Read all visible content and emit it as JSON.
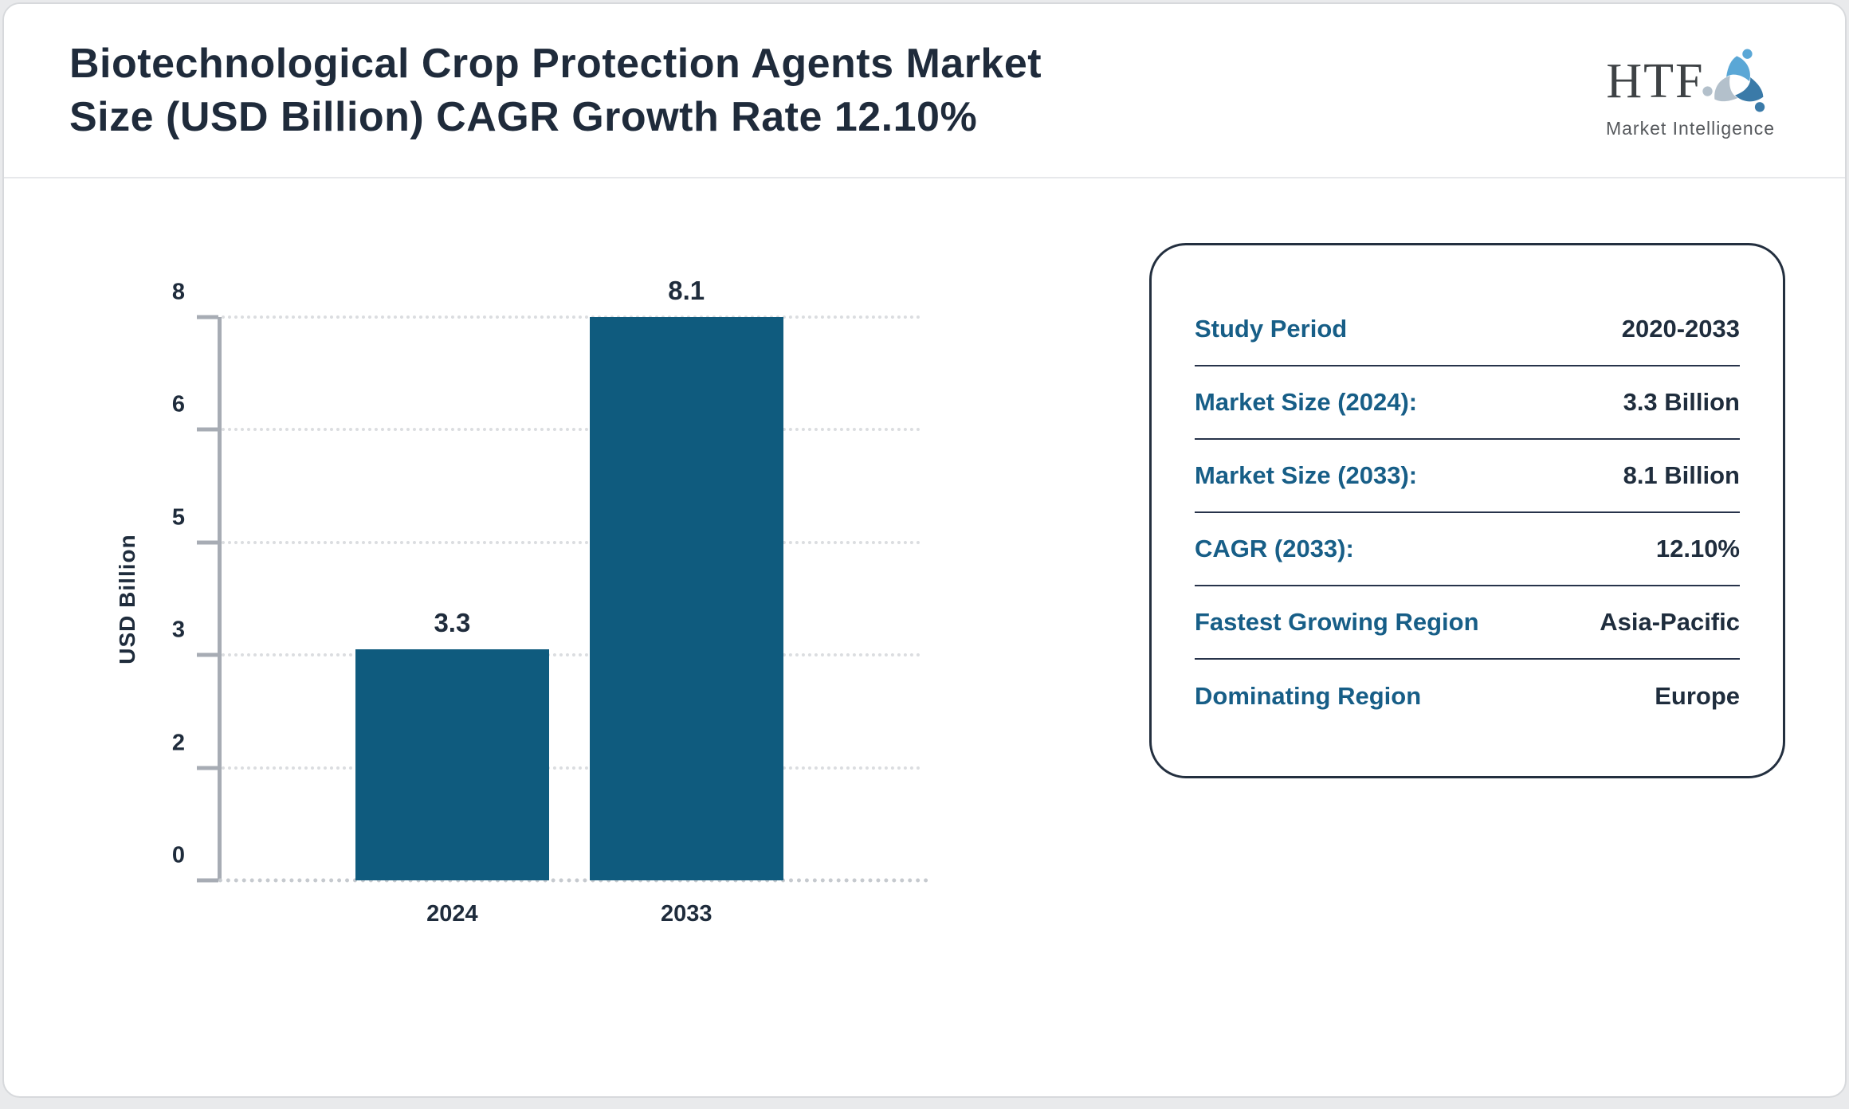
{
  "header": {
    "title_line1": "Biotechnological Crop Protection Agents Market",
    "title_line2": "Size (USD Billion) CAGR Growth Rate 12.10%",
    "logo": {
      "text": "HTF",
      "subtitle": "Market Intelligence",
      "colors": {
        "light_blue": "#5aa7d6",
        "steel_blue": "#3a7aa8",
        "pale_blue": "#b3c0cb"
      }
    }
  },
  "chart_data": {
    "type": "bar",
    "title": "Biotechnological Crop Protection Agents Market Size (USD Billion) CAGR Growth Rate 12.10%",
    "categories": [
      "2024",
      "2033"
    ],
    "values": [
      3.3,
      8.1
    ],
    "xlabel": "",
    "ylabel": "USD Billion",
    "ytick_labels": [
      "0",
      "2",
      "3",
      "5",
      "6",
      "8"
    ],
    "ytick_values": [
      0,
      2,
      3,
      5,
      6,
      8
    ],
    "yticks_evenly_spaced": true,
    "bar_height_fractions": [
      0.41,
      1.0
    ],
    "bar_center_fractions": [
      0.33,
      0.665
    ],
    "bar_width_fraction": 0.277,
    "bar_color": "#0f5b7e",
    "grid": "horizontal dotted",
    "legend": "none"
  },
  "panel": {
    "rows": [
      {
        "label": "Study Period",
        "value": "2020-2033"
      },
      {
        "label": "Market Size (2024):",
        "value": "3.3 Billion"
      },
      {
        "label": "Market Size (2033):",
        "value": "8.1 Billion"
      },
      {
        "label": "CAGR (2033):",
        "value": "12.10%"
      },
      {
        "label": "Fastest Growing Region",
        "value": "Asia-Pacific"
      },
      {
        "label": "Dominating Region",
        "value": "Europe"
      }
    ],
    "label_color": "#175e87",
    "value_color": "#1f2d3d"
  }
}
